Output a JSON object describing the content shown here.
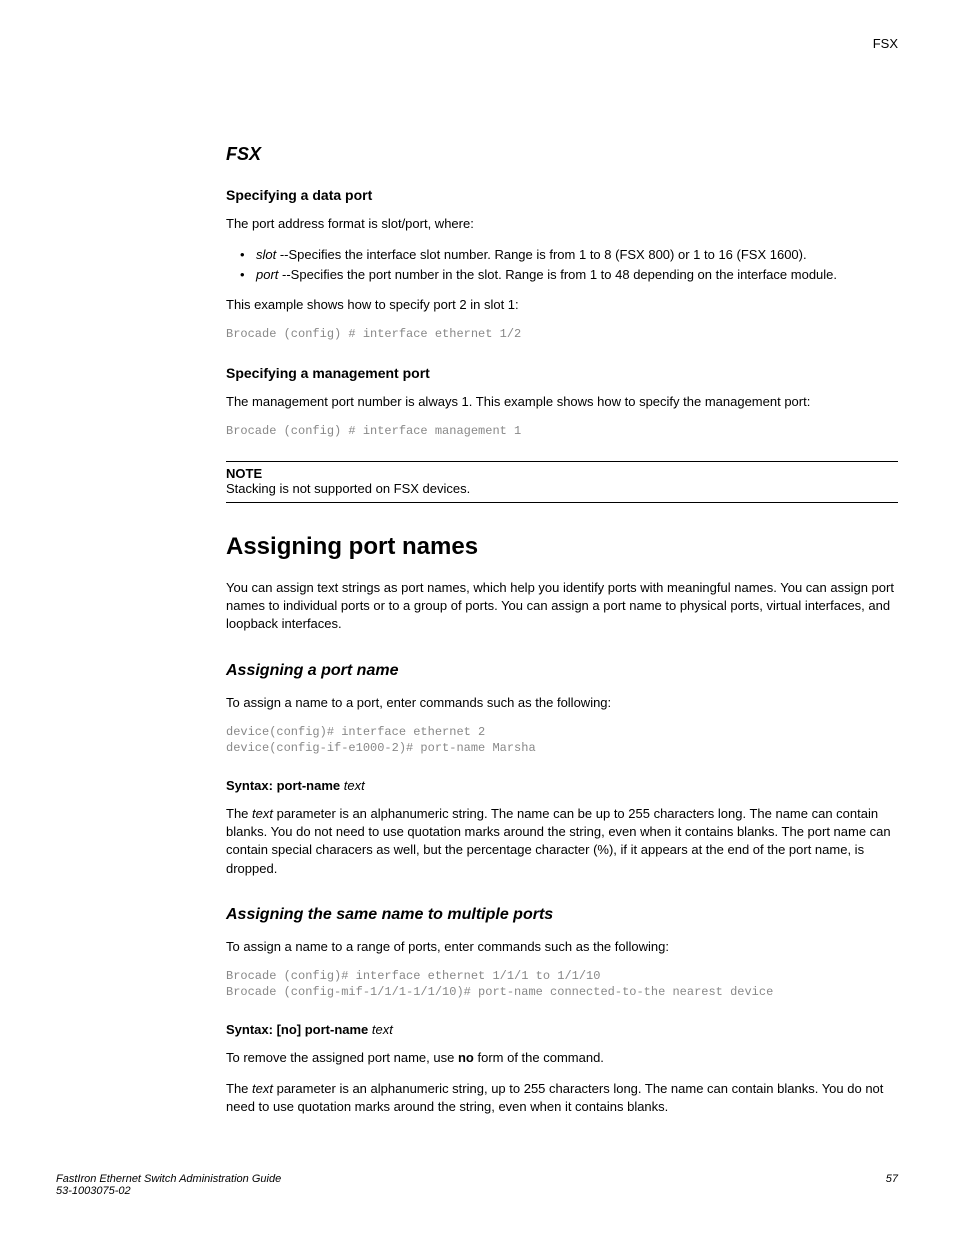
{
  "header": {
    "right": "FSX"
  },
  "section_fsx": {
    "title": "FSX",
    "data_port": {
      "heading": "Specifying a data port",
      "intro": "The port address format is slot/port, where:",
      "bullets": [
        {
          "term": "slot",
          "rest": " --Specifies the interface slot number. Range is from 1 to 8 (FSX 800) or 1 to 16 (FSX 1600)."
        },
        {
          "term": "port",
          "rest": " --Specifies the port number in the slot. Range is from 1 to 48 depending on the interface module."
        }
      ],
      "example_intro": "This example shows how to specify port 2 in slot 1:",
      "code": "Brocade (config) # interface ethernet 1/2"
    },
    "mgmt_port": {
      "heading": "Specifying a management port",
      "intro": "The management port number is always 1. This example shows how to specify the management port:",
      "code": "Brocade (config) # interface management 1"
    },
    "note": {
      "label": "NOTE",
      "text": "Stacking is not supported on FSX devices."
    }
  },
  "section_assigning": {
    "title": "Assigning port names",
    "intro": "You can assign text strings as port names, which help you identify ports with meaningful names. You can assign port names to individual ports or to a group of ports. You can assign a port name to physical ports, virtual interfaces, and loopback interfaces.",
    "single": {
      "heading": "Assigning a port name",
      "intro": "To assign a name to a port, enter commands such as the following:",
      "code": "device(config)# interface ethernet 2\ndevice(config-if-e1000-2)# port-name Marsha",
      "syntax_bold": "Syntax: port-name ",
      "syntax_italic": "text",
      "para_pre": "The ",
      "para_term": "text",
      "para_post": " parameter is an alphanumeric string. The name can be up to 255 characters long. The name can contain blanks. You do not need to use quotation marks around the string, even when it contains blanks. The port name can contain special characers as well, but the percentage character (%), if it appears at the end of the port name, is dropped."
    },
    "multi": {
      "heading": "Assigning the same name to multiple ports",
      "intro": "To assign a name to a range of ports, enter commands such as the following:",
      "code": "Brocade (config)# interface ethernet 1/1/1 to 1/1/10\nBrocade (config-mif-1/1/1-1/1/10)# port-name connected-to-the nearest device",
      "syntax_bold": "Syntax: [no] port-name ",
      "syntax_italic": "text",
      "remove_pre": "To remove the assigned port name, use ",
      "remove_bold": "no",
      "remove_post": " form of the command.",
      "para2_pre": "The ",
      "para2_term": "text",
      "para2_post": " parameter is an alphanumeric string, up to 255 characters long. The name can contain blanks. You do not need to use quotation marks around the string, even when it contains blanks."
    }
  },
  "footer": {
    "title": "FastIron Ethernet Switch Administration Guide",
    "docnum": "53-1003075-02",
    "page": "57"
  }
}
